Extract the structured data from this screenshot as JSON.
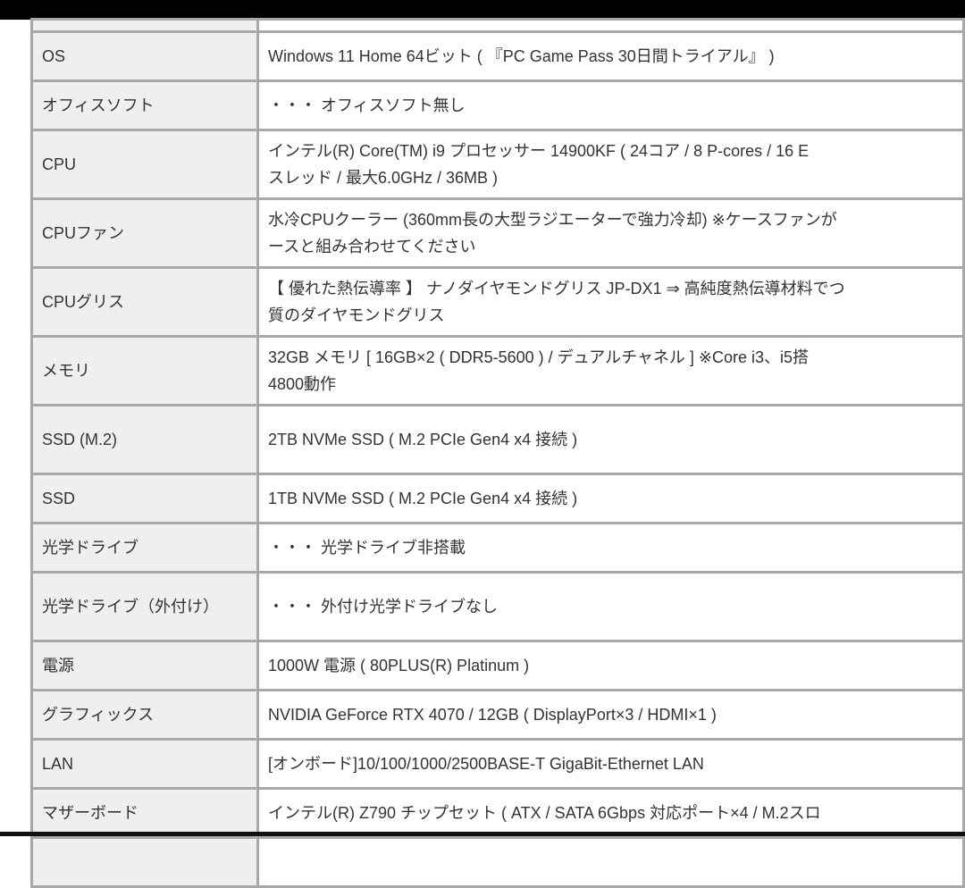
{
  "specs": [
    {
      "label": "OS",
      "value": [
        "Windows 11 Home 64ビット ( 『PC Game Pass 30日間トライアル』 )"
      ]
    },
    {
      "label": "オフィスソフト",
      "value": [
        "・・・ オフィスソフト無し"
      ]
    },
    {
      "label": "CPU",
      "value": [
        "インテル(R) Core(TM) i9 プロセッサー 14900KF ( 24コア / 8 P-cores / 16 E",
        "スレッド / 最大6.0GHz / 36MB )"
      ]
    },
    {
      "label": "CPUファン",
      "value": [
        "水冷CPUクーラー (360mm長の大型ラジエーターで強力冷却) ※ケースファンが",
        "ースと組み合わせてください"
      ]
    },
    {
      "label": "CPUグリス",
      "value": [
        "【 優れた熱伝導率 】 ナノダイヤモンドグリス JP-DX1 ⇒ 高純度熱伝導材料でつ",
        "質のダイヤモンドグリス"
      ]
    },
    {
      "label": "メモリ",
      "value": [
        "32GB メモリ [ 16GB×2 ( DDR5-5600 ) / デュアルチャネル ] ※Core i3、i5搭",
        "4800動作"
      ]
    },
    {
      "label": "SSD (M.2)",
      "value": [
        "2TB NVMe SSD ( M.2 PCIe Gen4 x4 接続 )"
      ]
    },
    {
      "label": "SSD",
      "value": [
        "1TB NVMe SSD ( M.2 PCIe Gen4 x4 接続 )"
      ]
    },
    {
      "label": "光学ドライブ",
      "value": [
        "・・・ 光学ドライブ非搭載"
      ]
    },
    {
      "label": "光学ドライブ（外付け）",
      "value": [
        "・・・ 外付け光学ドライブなし"
      ]
    },
    {
      "label": "電源",
      "value": [
        "1000W 電源 ( 80PLUS(R) Platinum )"
      ]
    },
    {
      "label": "グラフィックス",
      "value": [
        "NVIDIA GeForce RTX 4070 / 12GB ( DisplayPort×3 / HDMI×1 )"
      ]
    },
    {
      "label": "LAN",
      "value": [
        "[オンボード]10/100/1000/2500BASE-T GigaBit-Ethernet LAN"
      ]
    },
    {
      "label": "マザーボード",
      "value": [
        "インテル(R) Z790 チップセット ( ATX / SATA 6Gbps 対応ポート×4 / M.2スロ"
      ]
    }
  ]
}
